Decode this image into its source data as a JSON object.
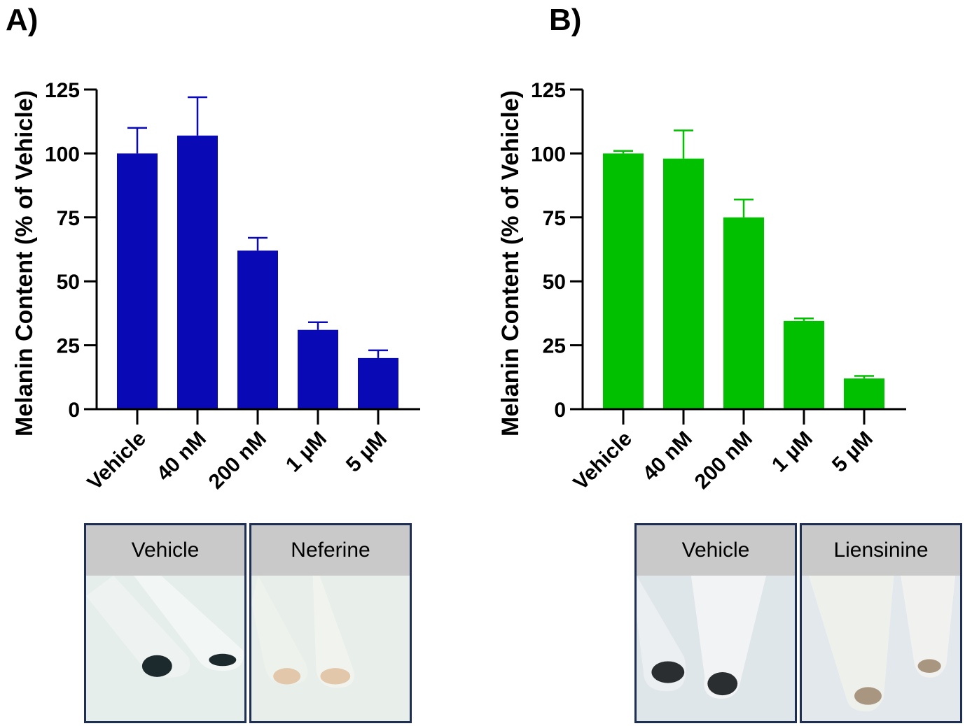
{
  "chart_data": [
    {
      "panel_label": "A)",
      "type": "bar",
      "ylabel": "Melanin Content (% of Vehicle)",
      "ylim": [
        0,
        125
      ],
      "yticks": [
        "0",
        "25",
        "50",
        "75",
        "100",
        "125"
      ],
      "categories": [
        "Vehicle",
        "40 nM",
        "200 nM",
        "1 µM",
        "5 µM"
      ],
      "values": [
        100,
        107,
        62,
        31,
        20
      ],
      "errors": [
        10,
        15,
        5,
        3,
        3
      ],
      "color": "#0909b5",
      "photos": {
        "left_label": "Vehicle",
        "right_label": "Neferine",
        "left_pellet": "#1c2a2e",
        "right_pellet": "#e2c7aa"
      }
    },
    {
      "panel_label": "B)",
      "type": "bar",
      "ylabel": "Melanin Content (% of Vehicle)",
      "ylim": [
        0,
        125
      ],
      "yticks": [
        "0",
        "25",
        "50",
        "75",
        "100",
        "125"
      ],
      "categories": [
        "Vehicle",
        "40 nM",
        "200 nM",
        "1 µM",
        "5 µM"
      ],
      "values": [
        100,
        98,
        75,
        34.5,
        12
      ],
      "errors": [
        1,
        11,
        7,
        1,
        1
      ],
      "color": "#00c000",
      "photos": {
        "left_label": "Vehicle",
        "right_label": "Liensinine",
        "left_pellet": "#2a2e30",
        "right_pellet": "#a89680"
      }
    }
  ]
}
